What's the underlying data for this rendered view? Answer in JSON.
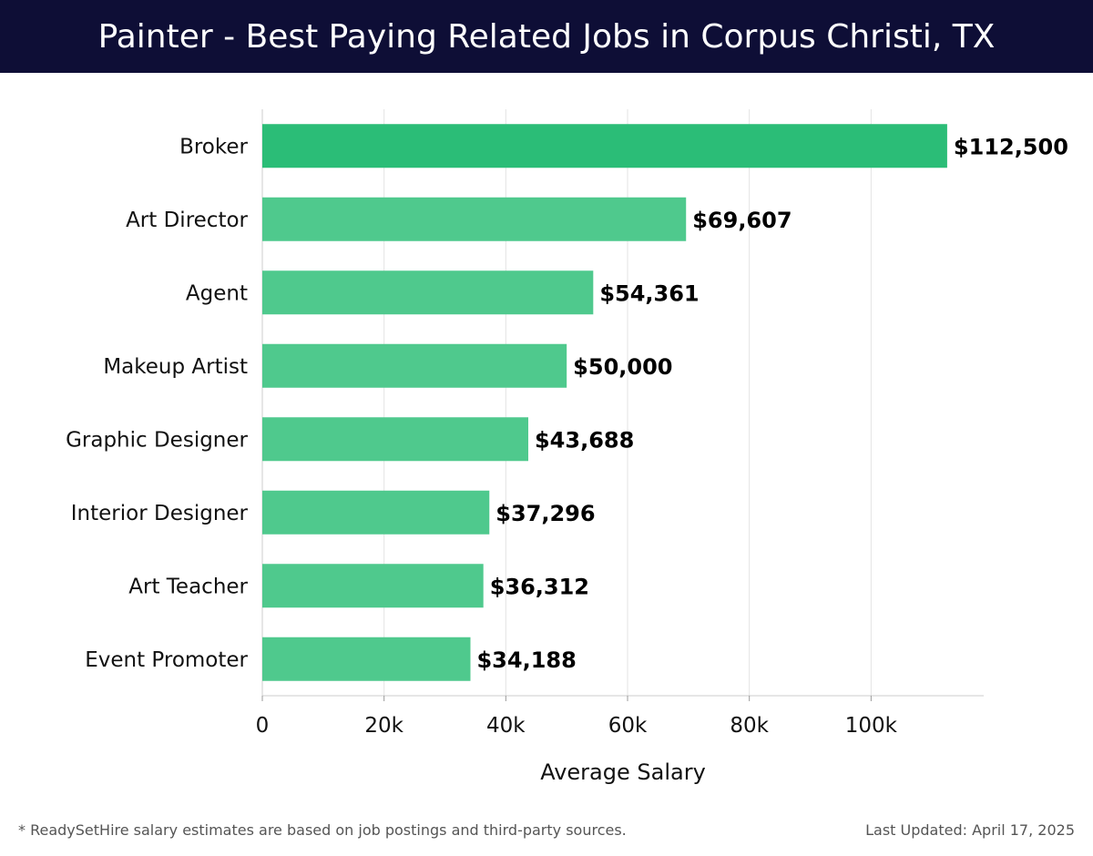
{
  "header": {
    "title": "Painter - Best Paying Related Jobs in Corpus Christi, TX"
  },
  "chart_data": {
    "type": "bar",
    "orientation": "horizontal",
    "categories": [
      "Broker",
      "Art Director",
      "Agent",
      "Makeup Artist",
      "Graphic Designer",
      "Interior Designer",
      "Art Teacher",
      "Event Promoter"
    ],
    "values": [
      112500,
      69607,
      54361,
      50000,
      43688,
      37296,
      36312,
      34188
    ],
    "value_labels": [
      "$112,500",
      "$69,607",
      "$54,361",
      "$50,000",
      "$43,688",
      "$37,296",
      "$36,312",
      "$34,188"
    ],
    "xlabel": "Average Salary",
    "ylabel": "",
    "xlim": [
      0,
      118500
    ],
    "x_ticks": [
      0,
      20000,
      40000,
      60000,
      80000,
      100000
    ],
    "x_tick_labels": [
      "0",
      "20k",
      "40k",
      "60k",
      "80k",
      "100k"
    ],
    "grid": "vertical",
    "colors": {
      "top_bar": "#2bbd77",
      "bar": "#4fc98d"
    }
  },
  "footer": {
    "note": "* ReadySetHire salary estimates are based on job postings and third-party sources.",
    "updated": "Last Updated: April 17, 2025"
  }
}
